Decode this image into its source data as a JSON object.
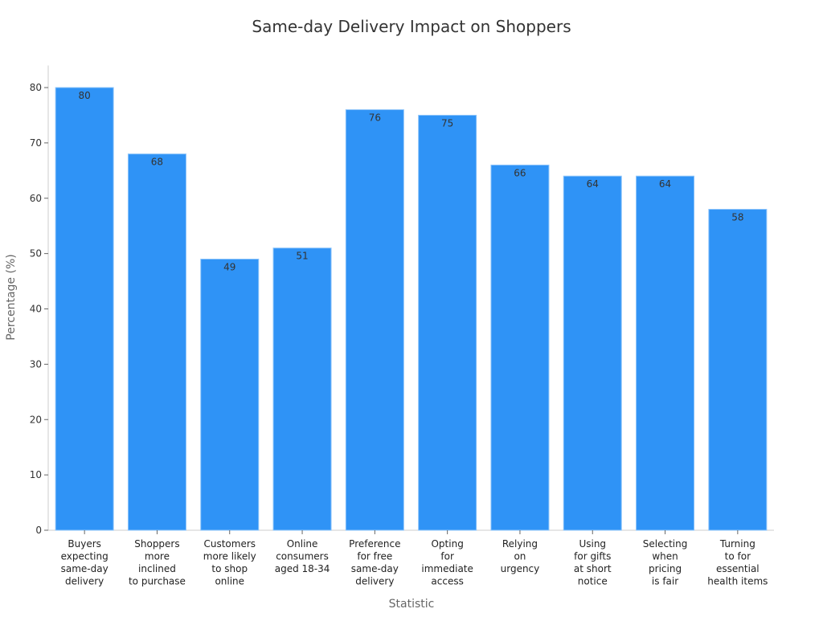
{
  "chart_data": {
    "type": "bar",
    "title": "Same-day Delivery Impact on Shoppers",
    "xlabel": "Statistic",
    "ylabel": "Percentage (%)",
    "ylim": [
      0,
      84
    ],
    "yticks": [
      0,
      10,
      20,
      30,
      40,
      50,
      60,
      70,
      80
    ],
    "grid": false,
    "bar_color": "#2f93f6",
    "categories": [
      [
        "Buyers",
        "expecting",
        "same-day",
        "delivery"
      ],
      [
        "Shoppers",
        "more",
        "inclined",
        "to purchase"
      ],
      [
        "Customers",
        "more likely",
        "to shop",
        "online"
      ],
      [
        "Online",
        "consumers",
        "aged 18-34"
      ],
      [
        "Preference",
        "for free",
        "same-day",
        "delivery"
      ],
      [
        "Opting",
        "for",
        "immediate",
        "access"
      ],
      [
        "Relying",
        "on",
        "urgency"
      ],
      [
        "Using",
        "for gifts",
        "at short",
        "notice"
      ],
      [
        "Selecting",
        "when",
        "pricing",
        "is fair"
      ],
      [
        "Turning",
        "to for",
        "essential",
        "health items"
      ]
    ],
    "values": [
      80,
      68,
      49,
      51,
      76,
      75,
      66,
      64,
      64,
      58
    ]
  }
}
